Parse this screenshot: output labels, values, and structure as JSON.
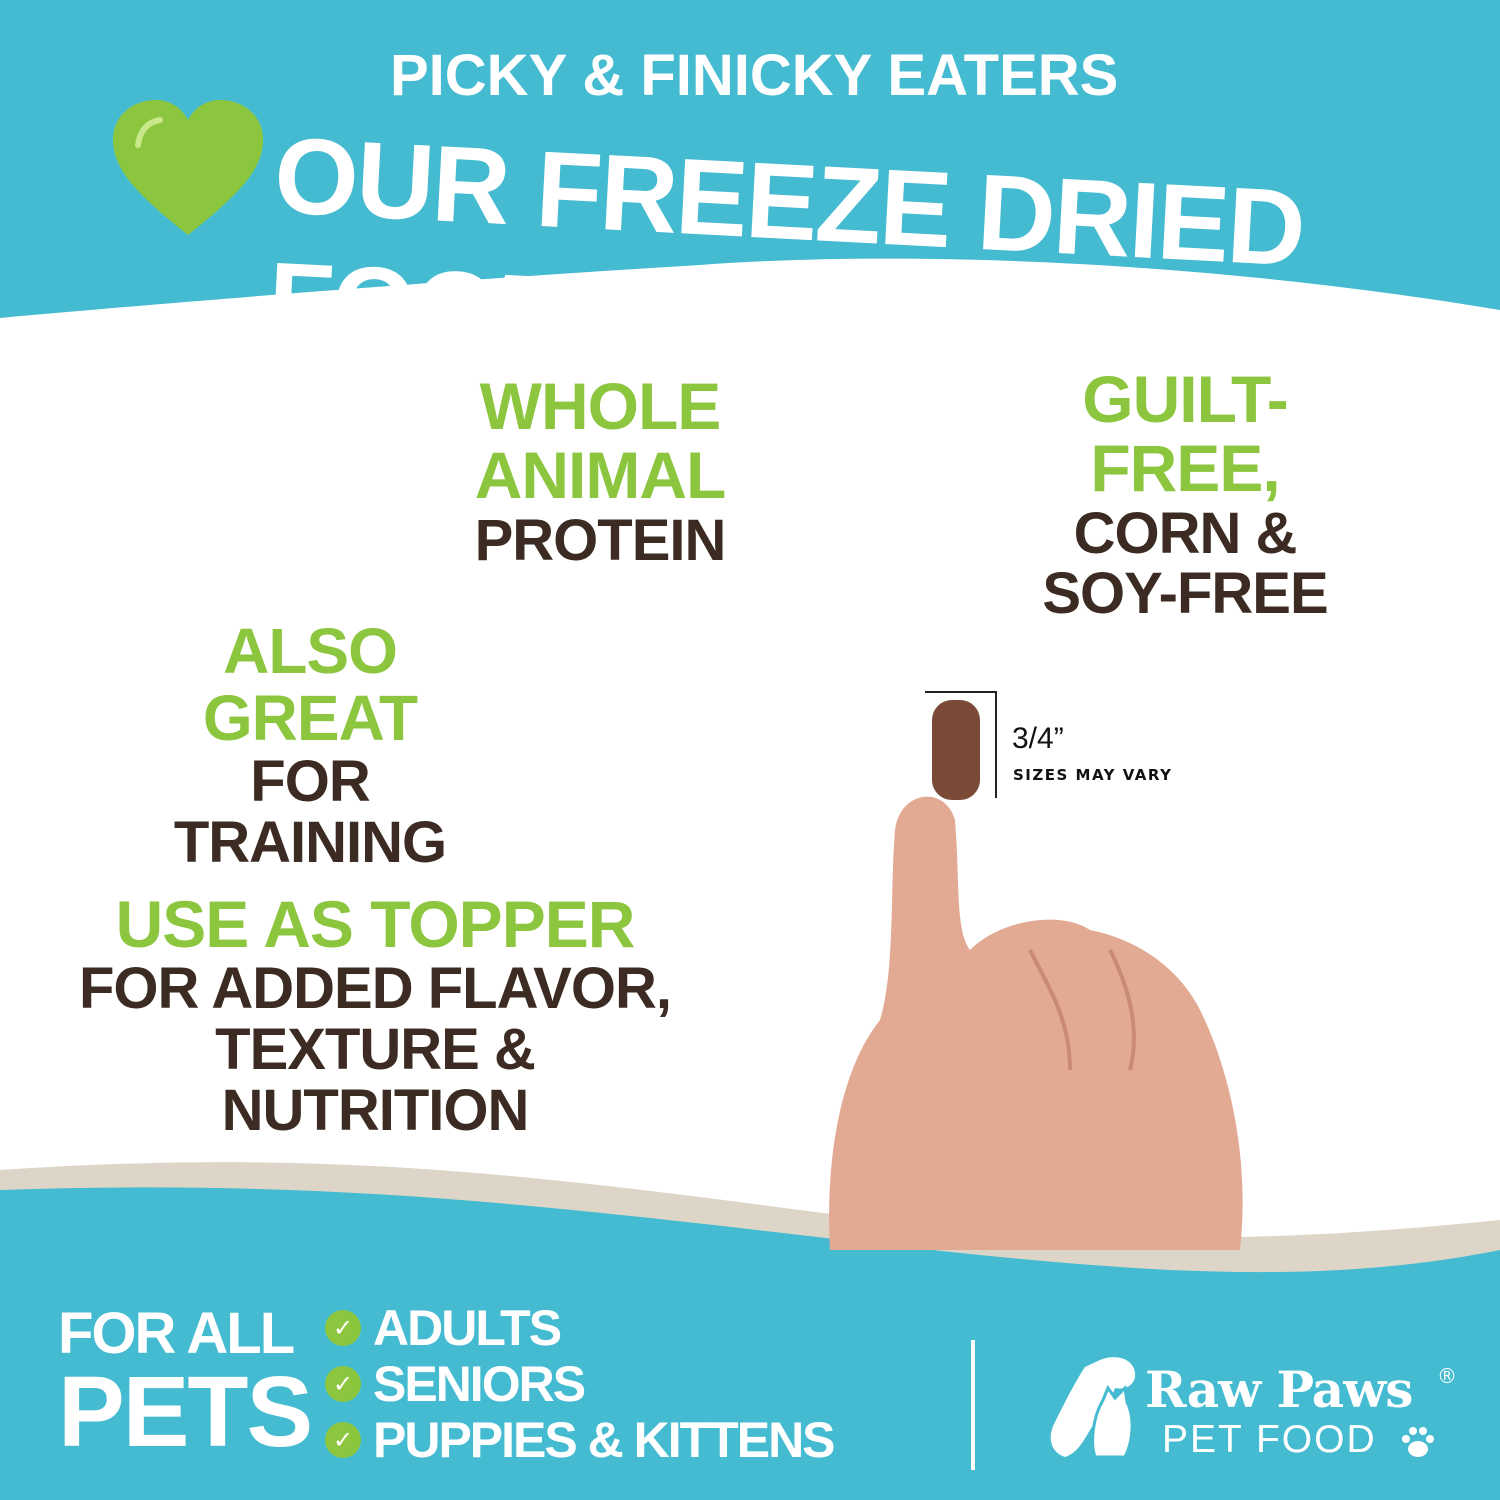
{
  "colors": {
    "teal": "#44bbd0",
    "green": "#8cc63f",
    "brown": "#3b2b22",
    "beige": "#ddd6c8"
  },
  "header": {
    "line1": "PICKY & FINICKY EATERS",
    "line2": "OUR FREEZE DRIED FOOD",
    "icon": "heart-icon"
  },
  "features": [
    {
      "highlight": "WHOLE ANIMAL",
      "rest": [
        "PROTEIN"
      ]
    },
    {
      "highlight": "GUILT-FREE,",
      "rest": [
        "CORN &",
        "SOY-FREE"
      ]
    },
    {
      "highlight": "ALSO GREAT",
      "rest": [
        "FOR TRAINING"
      ]
    },
    {
      "highlight": "USE AS TOPPER",
      "rest": [
        "FOR ADDED FLAVOR,",
        "TEXTURE & NUTRITION"
      ]
    }
  ],
  "size": {
    "value": "3/4”",
    "note": "SIZES MAY VARY"
  },
  "footer": {
    "for_all": "FOR ALL",
    "pets": "PETS",
    "items": [
      "ADULTS",
      "SENIORS",
      "PUPPIES & KITTENS"
    ],
    "brand_top": "Raw Paws",
    "registered": "®",
    "brand_bottom": "PET FOOD"
  }
}
